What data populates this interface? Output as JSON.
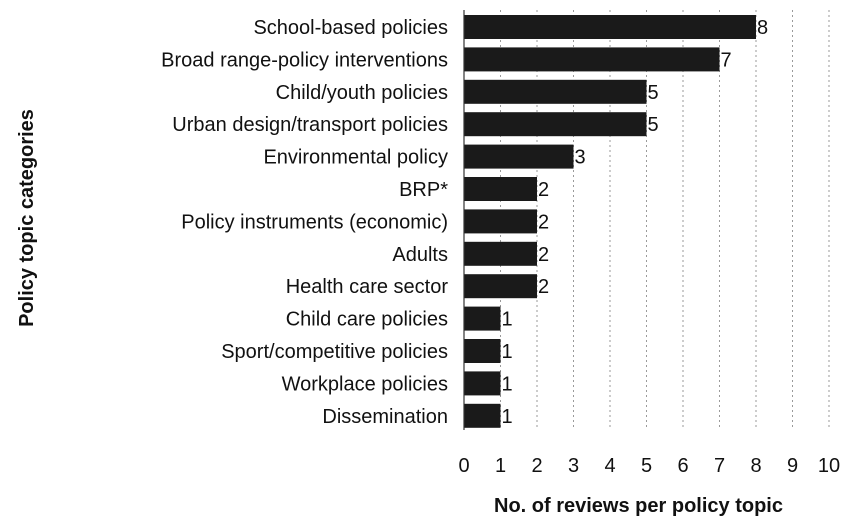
{
  "chart_data": {
    "type": "bar",
    "orientation": "horizontal",
    "categories": [
      "School-based policies",
      "Broad range-policy interventions",
      "Child/youth policies",
      "Urban design/transport policies",
      "Environmental policy",
      "BRP*",
      "Policy instruments (economic)",
      "Adults",
      "Health care sector",
      "Child care policies",
      "Sport/competitive policies",
      "Workplace policies",
      "Dissemination"
    ],
    "values": [
      8,
      7,
      5,
      5,
      3,
      2,
      2,
      2,
      2,
      1,
      1,
      1,
      1
    ],
    "title": "",
    "xlabel": "No. of reviews per policy topic",
    "ylabel": "Policy topic categories",
    "xlim": [
      0,
      10
    ],
    "xticks": [
      "0",
      "1",
      "2",
      "3",
      "4",
      "5",
      "6",
      "7",
      "8",
      "9",
      "10"
    ],
    "grid": "vertical dotted",
    "bar_color": "#1a1a1a",
    "data_labels": true
  }
}
